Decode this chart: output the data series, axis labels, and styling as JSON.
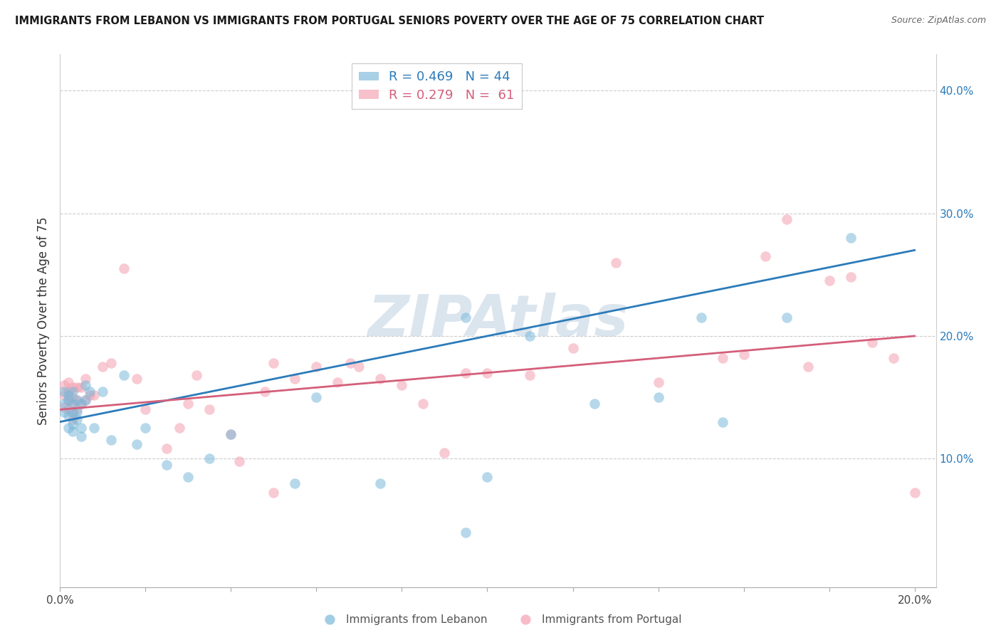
{
  "title": "IMMIGRANTS FROM LEBANON VS IMMIGRANTS FROM PORTUGAL SENIORS POVERTY OVER THE AGE OF 75 CORRELATION CHART",
  "source": "Source: ZipAtlas.com",
  "ylabel": "Seniors Poverty Over the Age of 75",
  "xlim": [
    0.0,
    0.205
  ],
  "ylim": [
    -0.005,
    0.43
  ],
  "color_lebanon": "#7ab8d9",
  "color_portugal": "#f4a0b0",
  "color_leb_line": "#2b7bba",
  "color_por_line": "#d45f7a",
  "watermark": "ZIPAtlas",
  "R_leb": 0.469,
  "N_leb": 44,
  "R_por": 0.279,
  "N_por": 61,
  "leb_line_y0": 0.13,
  "leb_line_y1": 0.27,
  "por_line_y0": 0.14,
  "por_line_y1": 0.2,
  "lebanon_x": [
    0.001,
    0.001,
    0.001,
    0.002,
    0.002,
    0.002,
    0.002,
    0.003,
    0.003,
    0.003,
    0.003,
    0.003,
    0.004,
    0.004,
    0.004,
    0.005,
    0.005,
    0.005,
    0.006,
    0.006,
    0.007,
    0.008,
    0.01,
    0.012,
    0.015,
    0.018,
    0.02,
    0.025,
    0.03,
    0.035,
    0.04,
    0.055,
    0.06,
    0.075,
    0.095,
    0.1,
    0.11,
    0.125,
    0.14,
    0.15,
    0.155,
    0.17,
    0.185,
    0.095
  ],
  "lebanon_y": [
    0.155,
    0.145,
    0.138,
    0.148,
    0.152,
    0.135,
    0.125,
    0.155,
    0.145,
    0.138,
    0.128,
    0.122,
    0.148,
    0.138,
    0.132,
    0.145,
    0.125,
    0.118,
    0.16,
    0.148,
    0.155,
    0.125,
    0.155,
    0.115,
    0.168,
    0.112,
    0.125,
    0.095,
    0.085,
    0.1,
    0.12,
    0.08,
    0.15,
    0.08,
    0.04,
    0.085,
    0.2,
    0.145,
    0.15,
    0.215,
    0.13,
    0.215,
    0.28,
    0.215
  ],
  "portugal_x": [
    0.001,
    0.001,
    0.001,
    0.002,
    0.002,
    0.002,
    0.002,
    0.003,
    0.003,
    0.003,
    0.003,
    0.003,
    0.004,
    0.004,
    0.004,
    0.005,
    0.005,
    0.006,
    0.006,
    0.007,
    0.008,
    0.01,
    0.012,
    0.015,
    0.018,
    0.02,
    0.025,
    0.028,
    0.032,
    0.035,
    0.04,
    0.042,
    0.048,
    0.05,
    0.055,
    0.06,
    0.065,
    0.068,
    0.07,
    0.075,
    0.08,
    0.085,
    0.09,
    0.095,
    0.1,
    0.11,
    0.12,
    0.13,
    0.14,
    0.155,
    0.16,
    0.165,
    0.17,
    0.175,
    0.18,
    0.185,
    0.19,
    0.195,
    0.2,
    0.03,
    0.05
  ],
  "portugal_y": [
    0.16,
    0.152,
    0.142,
    0.162,
    0.155,
    0.148,
    0.14,
    0.158,
    0.15,
    0.145,
    0.138,
    0.132,
    0.158,
    0.148,
    0.14,
    0.158,
    0.145,
    0.165,
    0.148,
    0.152,
    0.152,
    0.175,
    0.178,
    0.255,
    0.165,
    0.14,
    0.108,
    0.125,
    0.168,
    0.14,
    0.12,
    0.098,
    0.155,
    0.178,
    0.165,
    0.175,
    0.162,
    0.178,
    0.175,
    0.165,
    0.16,
    0.145,
    0.105,
    0.17,
    0.17,
    0.168,
    0.19,
    0.26,
    0.162,
    0.182,
    0.185,
    0.265,
    0.295,
    0.175,
    0.245,
    0.248,
    0.195,
    0.182,
    0.072,
    0.145,
    0.072
  ]
}
